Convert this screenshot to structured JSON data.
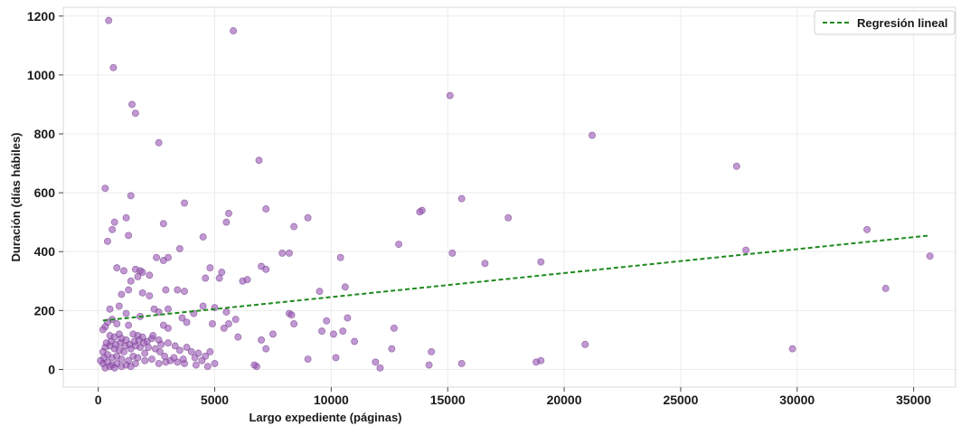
{
  "chart_data": {
    "type": "scatter",
    "title": "",
    "xlabel": "Largo expediente (páginas)",
    "ylabel": "Duración (días hábiles)",
    "xlim": [
      -1500,
      36800
    ],
    "ylim": [
      -60,
      1230
    ],
    "xticks": [
      0,
      5000,
      10000,
      15000,
      20000,
      25000,
      30000,
      35000
    ],
    "yticks": [
      0,
      200,
      400,
      600,
      800,
      1000,
      1200
    ],
    "grid": true,
    "legend_position": "top-right",
    "colors": {
      "points": "#9b59b6",
      "point_edge": "#6c3483",
      "regression": "#1e8a1e",
      "grid": "#ececec"
    },
    "regression": {
      "label": "Regresión lineal",
      "x": [
        200,
        35700
      ],
      "y": [
        166,
        455
      ]
    },
    "points": [
      [
        450,
        1185
      ],
      [
        5800,
        1150
      ],
      [
        650,
        1025
      ],
      [
        15100,
        930
      ],
      [
        1450,
        900
      ],
      [
        1600,
        870
      ],
      [
        21200,
        795
      ],
      [
        2600,
        770
      ],
      [
        6900,
        710
      ],
      [
        27400,
        690
      ],
      [
        300,
        615
      ],
      [
        1400,
        590
      ],
      [
        15600,
        580
      ],
      [
        3700,
        565
      ],
      [
        7200,
        545
      ],
      [
        13900,
        540
      ],
      [
        13800,
        535
      ],
      [
        5600,
        530
      ],
      [
        17600,
        515
      ],
      [
        9000,
        515
      ],
      [
        1200,
        515
      ],
      [
        700,
        500
      ],
      [
        5500,
        500
      ],
      [
        2800,
        495
      ],
      [
        8400,
        485
      ],
      [
        600,
        475
      ],
      [
        33000,
        475
      ],
      [
        15200,
        395
      ],
      [
        27800,
        405
      ],
      [
        1300,
        455
      ],
      [
        4500,
        450
      ],
      [
        12900,
        425
      ],
      [
        400,
        435
      ],
      [
        3500,
        410
      ],
      [
        2500,
        380
      ],
      [
        2800,
        370
      ],
      [
        3000,
        380
      ],
      [
        16600,
        360
      ],
      [
        19000,
        365
      ],
      [
        7900,
        395
      ],
      [
        8200,
        395
      ],
      [
        10400,
        380
      ],
      [
        4800,
        345
      ],
      [
        5300,
        330
      ],
      [
        1600,
        340
      ],
      [
        1800,
        335
      ],
      [
        1900,
        330
      ],
      [
        1100,
        335
      ],
      [
        800,
        345
      ],
      [
        4600,
        310
      ],
      [
        5200,
        310
      ],
      [
        6200,
        300
      ],
      [
        6400,
        305
      ],
      [
        7000,
        350
      ],
      [
        7200,
        340
      ],
      [
        10600,
        280
      ],
      [
        2200,
        320
      ],
      [
        1700,
        315
      ],
      [
        35700,
        385
      ],
      [
        1400,
        300
      ],
      [
        33800,
        275
      ],
      [
        9500,
        265
      ],
      [
        2900,
        270
      ],
      [
        3400,
        270
      ],
      [
        3700,
        265
      ],
      [
        1900,
        260
      ],
      [
        2200,
        250
      ],
      [
        1300,
        270
      ],
      [
        1000,
        255
      ],
      [
        2400,
        205
      ],
      [
        5000,
        210
      ],
      [
        4500,
        215
      ],
      [
        5500,
        195
      ],
      [
        4100,
        190
      ],
      [
        5900,
        170
      ],
      [
        3000,
        205
      ],
      [
        3600,
        175
      ],
      [
        2600,
        195
      ],
      [
        1800,
        180
      ],
      [
        900,
        215
      ],
      [
        500,
        205
      ],
      [
        3800,
        160
      ],
      [
        8200,
        190
      ],
      [
        8300,
        185
      ],
      [
        9800,
        165
      ],
      [
        10700,
        175
      ],
      [
        12700,
        140
      ],
      [
        9600,
        130
      ],
      [
        10100,
        120
      ],
      [
        10500,
        130
      ],
      [
        7500,
        120
      ],
      [
        8400,
        155
      ],
      [
        7000,
        100
      ],
      [
        7200,
        70
      ],
      [
        5400,
        140
      ],
      [
        6000,
        110
      ],
      [
        4900,
        155
      ],
      [
        5600,
        155
      ],
      [
        3000,
        140
      ],
      [
        2800,
        150
      ],
      [
        1300,
        150
      ],
      [
        1200,
        190
      ],
      [
        800,
        155
      ],
      [
        600,
        170
      ],
      [
        400,
        160
      ],
      [
        300,
        145
      ],
      [
        200,
        135
      ],
      [
        500,
        115
      ],
      [
        700,
        110
      ],
      [
        900,
        120
      ],
      [
        1000,
        105
      ],
      [
        1200,
        100
      ],
      [
        1500,
        120
      ],
      [
        1700,
        115
      ],
      [
        1900,
        110
      ],
      [
        2100,
        95
      ],
      [
        2300,
        105
      ],
      [
        2600,
        100
      ],
      [
        2700,
        85
      ],
      [
        3000,
        90
      ],
      [
        3300,
        80
      ],
      [
        3500,
        65
      ],
      [
        3800,
        75
      ],
      [
        4000,
        60
      ],
      [
        4300,
        55
      ],
      [
        4600,
        45
      ],
      [
        4800,
        60
      ],
      [
        2000,
        55
      ],
      [
        1800,
        75
      ],
      [
        1600,
        80
      ],
      [
        1400,
        70
      ],
      [
        1100,
        60
      ],
      [
        900,
        65
      ],
      [
        700,
        70
      ],
      [
        500,
        80
      ],
      [
        300,
        75
      ],
      [
        200,
        60
      ],
      [
        400,
        50
      ],
      [
        600,
        40
      ],
      [
        800,
        45
      ],
      [
        1000,
        35
      ],
      [
        1300,
        30
      ],
      [
        1500,
        45
      ],
      [
        1700,
        40
      ],
      [
        2000,
        30
      ],
      [
        2300,
        35
      ],
      [
        2600,
        20
      ],
      [
        2900,
        25
      ],
      [
        3100,
        30
      ],
      [
        3400,
        25
      ],
      [
        3700,
        20
      ],
      [
        4200,
        15
      ],
      [
        4700,
        10
      ],
      [
        5000,
        20
      ],
      [
        6800,
        10
      ],
      [
        6700,
        15
      ],
      [
        9000,
        35
      ],
      [
        10200,
        40
      ],
      [
        11000,
        95
      ],
      [
        11900,
        25
      ],
      [
        12100,
        5
      ],
      [
        12600,
        70
      ],
      [
        14200,
        15
      ],
      [
        14300,
        60
      ],
      [
        15600,
        20
      ],
      [
        18800,
        25
      ],
      [
        19000,
        30
      ],
      [
        20900,
        85
      ],
      [
        29800,
        70
      ],
      [
        200,
        20
      ],
      [
        400,
        25
      ],
      [
        600,
        15
      ],
      [
        800,
        20
      ],
      [
        1000,
        10
      ],
      [
        300,
        5
      ],
      [
        500,
        10
      ],
      [
        700,
        5
      ],
      [
        1200,
        15
      ],
      [
        1400,
        10
      ],
      [
        1600,
        20
      ],
      [
        100,
        30
      ],
      [
        250,
        40
      ],
      [
        350,
        90
      ],
      [
        550,
        95
      ],
      [
        750,
        85
      ],
      [
        950,
        90
      ],
      [
        1150,
        80
      ],
      [
        1350,
        85
      ],
      [
        1550,
        95
      ],
      [
        1750,
        100
      ],
      [
        1950,
        90
      ],
      [
        2150,
        75
      ],
      [
        2450,
        70
      ],
      [
        2650,
        60
      ],
      [
        2850,
        45
      ],
      [
        3250,
        40
      ],
      [
        3650,
        35
      ],
      [
        4150,
        40
      ],
      [
        4450,
        30
      ],
      [
        2350,
        115
      ]
    ]
  }
}
